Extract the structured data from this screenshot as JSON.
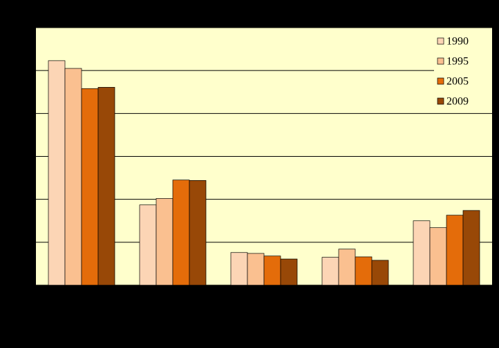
{
  "chart_data": {
    "type": "bar",
    "categories": [
      null,
      null,
      null,
      null,
      null
    ],
    "series": [
      {
        "name": "1990",
        "color": "#fcd5b5",
        "values": [
          5.23,
          1.87,
          0.76,
          0.65,
          1.5
        ]
      },
      {
        "name": "1995",
        "color": "#fac090",
        "values": [
          5.05,
          2.02,
          0.74,
          0.84,
          1.34
        ]
      },
      {
        "name": "2005",
        "color": "#e46c0a",
        "values": [
          4.58,
          2.45,
          0.68,
          0.66,
          1.63
        ]
      },
      {
        "name": "2009",
        "color": "#984807",
        "values": [
          4.61,
          2.44,
          0.61,
          0.58,
          1.74
        ]
      }
    ],
    "ylim": [
      0,
      6
    ],
    "yticks": [
      0,
      1,
      2,
      3,
      4,
      5,
      6
    ],
    "grid": true,
    "legend": "top-right"
  }
}
